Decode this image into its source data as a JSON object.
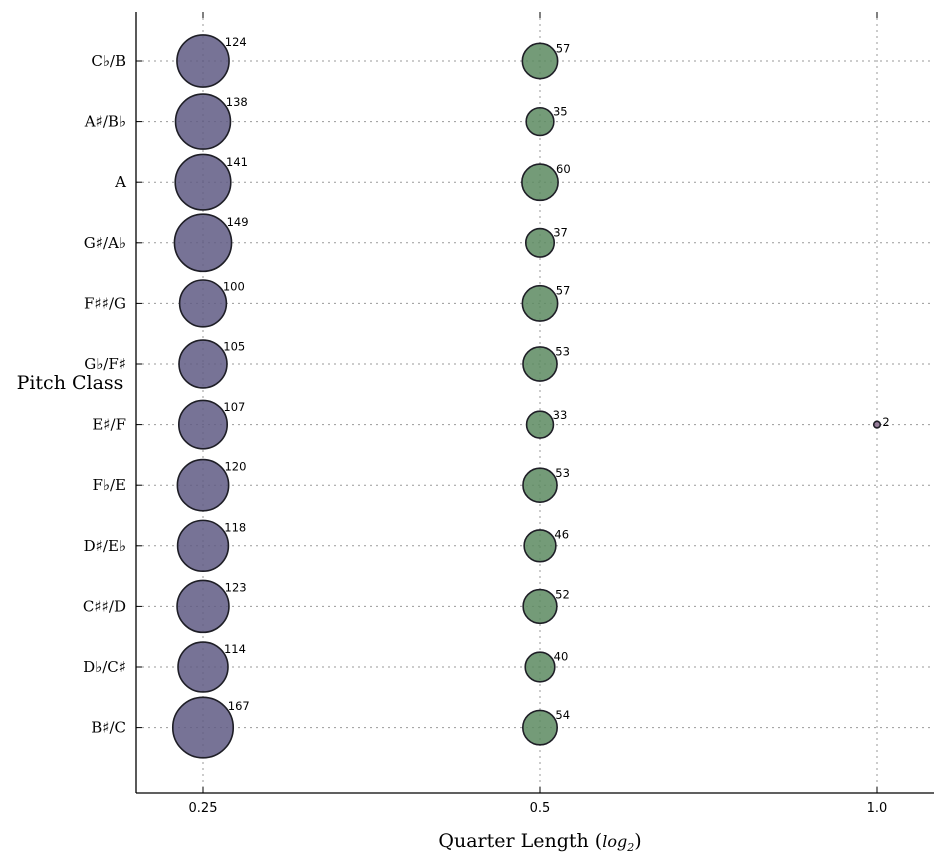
{
  "chart_data": {
    "type": "scatter",
    "xlabel": "Quarter Length ",
    "xlabel_math": "log",
    "xlabel_math_sub": "2",
    "ylabel": "Pitch Class",
    "x_ticks": [
      "0.25",
      "0.5",
      "1.0"
    ],
    "x_scale": "log2",
    "categories": [
      "C♭/B",
      "A♯/B♭",
      "A",
      "G♯/A♭",
      "F♯♯/G",
      "G♭/F♯",
      "E♯/F",
      "F♭/E",
      "D♯/E♭",
      "C♯♯/D",
      "D♭/C♯",
      "B♯/C"
    ],
    "grid": true,
    "series": [
      {
        "x": 0.25,
        "color": "#5f5a84",
        "values": [
          124,
          138,
          141,
          149,
          100,
          105,
          107,
          120,
          118,
          123,
          114,
          167
        ]
      },
      {
        "x": 0.5,
        "color": "#5c8a60",
        "values": [
          57,
          35,
          60,
          37,
          57,
          53,
          33,
          53,
          46,
          52,
          40,
          54
        ]
      },
      {
        "x": 1.0,
        "color": "#85698a",
        "values": [
          null,
          null,
          null,
          null,
          null,
          null,
          2,
          null,
          null,
          null,
          null,
          null
        ]
      }
    ]
  }
}
